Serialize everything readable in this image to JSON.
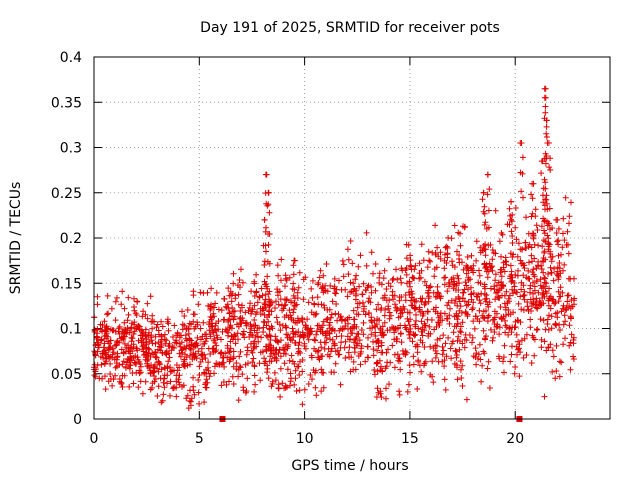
{
  "chart_data": {
    "type": "scatter",
    "title": "Day 191 of 2025, SRMTID for receiver pots",
    "xlabel": "GPS time / hours",
    "ylabel": "SRMTID / TECUs",
    "xlim": [
      0,
      24.5
    ],
    "ylim": [
      0,
      0.4
    ],
    "x_ticks": [
      0,
      5,
      10,
      15,
      20
    ],
    "x_tick_labels": [
      "0",
      "5",
      "10",
      "15",
      "20"
    ],
    "y_ticks": [
      0,
      0.05,
      0.1,
      0.15,
      0.2,
      0.25,
      0.3,
      0.35,
      0.4
    ],
    "y_tick_labels": [
      "0",
      "0.05",
      "0.1",
      "0.15",
      "0.2",
      "0.25",
      "0.3",
      "0.35",
      "0.4"
    ],
    "grid": true,
    "marker": "+",
    "marker_color": "#e00000",
    "series_name": "SRMTID",
    "trend": [
      {
        "x": 0.0,
        "y": 0.08
      },
      {
        "x": 1.0,
        "y": 0.08
      },
      {
        "x": 2.0,
        "y": 0.085
      },
      {
        "x": 3.0,
        "y": 0.075
      },
      {
        "x": 4.0,
        "y": 0.07
      },
      {
        "x": 5.0,
        "y": 0.08
      },
      {
        "x": 6.0,
        "y": 0.09
      },
      {
        "x": 7.0,
        "y": 0.095
      },
      {
        "x": 8.0,
        "y": 0.1
      },
      {
        "x": 9.0,
        "y": 0.09
      },
      {
        "x": 10.0,
        "y": 0.09
      },
      {
        "x": 11.0,
        "y": 0.1
      },
      {
        "x": 12.0,
        "y": 0.105
      },
      {
        "x": 13.0,
        "y": 0.11
      },
      {
        "x": 14.0,
        "y": 0.1
      },
      {
        "x": 15.0,
        "y": 0.115
      },
      {
        "x": 16.0,
        "y": 0.12
      },
      {
        "x": 17.0,
        "y": 0.125
      },
      {
        "x": 18.0,
        "y": 0.13
      },
      {
        "x": 19.0,
        "y": 0.14
      },
      {
        "x": 20.0,
        "y": 0.13
      },
      {
        "x": 21.0,
        "y": 0.16
      },
      {
        "x": 22.0,
        "y": 0.13
      },
      {
        "x": 22.8,
        "y": 0.14
      }
    ],
    "spikes": [
      {
        "x": 8.2,
        "y": 0.27
      },
      {
        "x": 8.3,
        "y": 0.25
      },
      {
        "x": 8.1,
        "y": 0.22
      },
      {
        "x": 9.5,
        "y": 0.175
      },
      {
        "x": 18.5,
        "y": 0.25
      },
      {
        "x": 18.7,
        "y": 0.27
      },
      {
        "x": 19.8,
        "y": 0.24
      },
      {
        "x": 20.3,
        "y": 0.305
      },
      {
        "x": 20.8,
        "y": 0.26
      },
      {
        "x": 21.4,
        "y": 0.365
      },
      {
        "x": 21.45,
        "y": 0.355
      },
      {
        "x": 21.5,
        "y": 0.33
      },
      {
        "x": 21.6,
        "y": 0.305
      },
      {
        "x": 21.3,
        "y": 0.285
      },
      {
        "x": 22.0,
        "y": 0.22
      }
    ],
    "dips": [
      {
        "x": 4.6,
        "y": 0.015
      },
      {
        "x": 4.5,
        "y": 0.012
      },
      {
        "x": 14.9,
        "y": 0.03
      },
      {
        "x": 1.3,
        "y": 0.04
      },
      {
        "x": 7.6,
        "y": 0.03
      },
      {
        "x": 21.9,
        "y": 0.045
      }
    ],
    "marks_on_axis": [
      {
        "x": 6.1,
        "y": 0.0
      },
      {
        "x": 20.2,
        "y": 0.0
      }
    ]
  }
}
